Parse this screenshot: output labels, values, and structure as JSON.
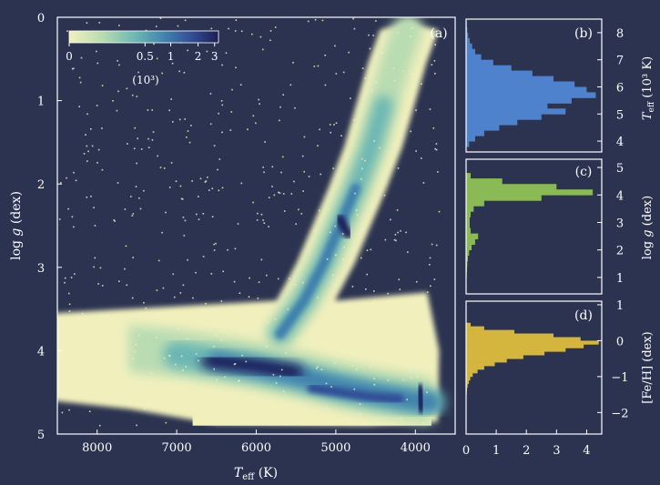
{
  "chart_data": [
    {
      "panel": "(a)",
      "type": "heatmap",
      "title": "",
      "xlabel_main": "T",
      "xlabel_sub": "eff",
      "xlabel_unit": " (K)",
      "ylabel_main": "log ",
      "ylabel_italic": "g",
      "ylabel_unit": " (dex)",
      "xlim": [
        8500,
        3500
      ],
      "ylim": [
        0,
        5
      ],
      "xticks": [
        8000,
        7000,
        6000,
        5000,
        4000
      ],
      "yticks": [
        0,
        1,
        2,
        3,
        4,
        5
      ],
      "colorbar": {
        "scale": "log",
        "ticks": [
          {
            "value": 0,
            "label": "0"
          },
          {
            "value": 0.5,
            "label": "0.5"
          },
          {
            "value": 1,
            "label": "1"
          },
          {
            "value": 2,
            "label": "2"
          },
          {
            "value": 3,
            "label": "3"
          }
        ],
        "unit": "(10³)",
        "colors": [
          "#f1f0bd",
          "#b9dcb2",
          "#6ab6b4",
          "#3f7fae",
          "#334d96",
          "#1e1e55"
        ]
      },
      "features": [
        {
          "name": "main sequence",
          "points": [
            [
              7600,
              4.0
            ],
            [
              7000,
              4.05
            ],
            [
              6500,
              4.12
            ],
            [
              6000,
              4.2
            ],
            [
              5500,
              4.3
            ],
            [
              5000,
              4.42
            ],
            [
              4500,
              4.52
            ],
            [
              4000,
              4.6
            ],
            [
              3800,
              4.62
            ]
          ]
        },
        {
          "name": "giant branch",
          "points": [
            [
              5700,
              3.8
            ],
            [
              5400,
              3.4
            ],
            [
              5150,
              2.95
            ],
            [
              4950,
              2.5
            ],
            [
              4750,
              2.05
            ],
            [
              4550,
              1.55
            ],
            [
              4400,
              1.05
            ],
            [
              4250,
              0.55
            ],
            [
              4100,
              0.15
            ]
          ]
        },
        {
          "name": "red clump",
          "points": [
            [
              4950,
              2.42
            ],
            [
              4850,
              2.6
            ]
          ]
        }
      ]
    },
    {
      "panel": "(b)",
      "type": "histogram",
      "orientation": "horizontal",
      "color": "#4f82cc",
      "ylabel_main": "T",
      "ylabel_sub": "eff",
      "ylabel_unit": " (10³ K)",
      "ylim": [
        3.6,
        8.5
      ],
      "yticks": [
        4,
        5,
        6,
        7,
        8
      ],
      "bins": [
        {
          "y": 8.3,
          "count": 0.02
        },
        {
          "y": 8.1,
          "count": 0.04
        },
        {
          "y": 7.9,
          "count": 0.07
        },
        {
          "y": 7.7,
          "count": 0.12
        },
        {
          "y": 7.5,
          "count": 0.2
        },
        {
          "y": 7.3,
          "count": 0.3
        },
        {
          "y": 7.1,
          "count": 0.5
        },
        {
          "y": 6.9,
          "count": 0.9
        },
        {
          "y": 6.7,
          "count": 1.5
        },
        {
          "y": 6.5,
          "count": 2.2
        },
        {
          "y": 6.3,
          "count": 2.9
        },
        {
          "y": 6.1,
          "count": 3.6
        },
        {
          "y": 5.9,
          "count": 4.0
        },
        {
          "y": 5.7,
          "count": 4.3
        },
        {
          "y": 5.5,
          "count": 3.5
        },
        {
          "y": 5.3,
          "count": 2.7
        },
        {
          "y": 5.1,
          "count": 3.3
        },
        {
          "y": 4.9,
          "count": 2.5
        },
        {
          "y": 4.7,
          "count": 1.7
        },
        {
          "y": 4.5,
          "count": 1.1
        },
        {
          "y": 4.3,
          "count": 0.6
        },
        {
          "y": 4.1,
          "count": 0.3
        },
        {
          "y": 3.9,
          "count": 0.1
        }
      ]
    },
    {
      "panel": "(c)",
      "type": "histogram",
      "orientation": "horizontal",
      "color": "#8aba55",
      "ylabel_main": "log ",
      "ylabel_italic": "g",
      "ylabel_unit": " (dex)",
      "ylim": [
        0.4,
        5.3
      ],
      "yticks": [
        1,
        2,
        3,
        4,
        5
      ],
      "bins": [
        {
          "y": 4.7,
          "count": 0.15
        },
        {
          "y": 4.5,
          "count": 1.2
        },
        {
          "y": 4.3,
          "count": 3.0
        },
        {
          "y": 4.1,
          "count": 4.2
        },
        {
          "y": 3.9,
          "count": 2.5
        },
        {
          "y": 3.7,
          "count": 0.6
        },
        {
          "y": 3.5,
          "count": 0.25
        },
        {
          "y": 3.3,
          "count": 0.15
        },
        {
          "y": 3.1,
          "count": 0.12
        },
        {
          "y": 2.9,
          "count": 0.12
        },
        {
          "y": 2.7,
          "count": 0.15
        },
        {
          "y": 2.5,
          "count": 0.4
        },
        {
          "y": 2.3,
          "count": 0.3
        },
        {
          "y": 2.1,
          "count": 0.18
        },
        {
          "y": 1.9,
          "count": 0.1
        },
        {
          "y": 1.7,
          "count": 0.06
        },
        {
          "y": 1.5,
          "count": 0.04
        },
        {
          "y": 1.3,
          "count": 0.03
        },
        {
          "y": 1.1,
          "count": 0.02
        },
        {
          "y": 0.9,
          "count": 0.01
        }
      ]
    },
    {
      "panel": "(d)",
      "type": "histogram",
      "orientation": "horizontal",
      "color": "#d4b53e",
      "ylabel_main": "[Fe/H] (dex)",
      "ylim": [
        -2.6,
        1.1
      ],
      "yticks": [
        1,
        0,
        -1,
        -2
      ],
      "ytick_labels": [
        "1",
        "0",
        "−1",
        "−2"
      ],
      "xlim": [
        0,
        4.5
      ],
      "xticks": [
        0,
        1,
        2,
        3,
        4
      ],
      "bins": [
        {
          "y": 0.45,
          "count": 0.15
        },
        {
          "y": 0.35,
          "count": 0.6
        },
        {
          "y": 0.25,
          "count": 1.6
        },
        {
          "y": 0.15,
          "count": 2.9
        },
        {
          "y": 0.05,
          "count": 3.8
        },
        {
          "y": -0.05,
          "count": 4.4
        },
        {
          "y": -0.15,
          "count": 3.9
        },
        {
          "y": -0.25,
          "count": 3.3
        },
        {
          "y": -0.35,
          "count": 2.6
        },
        {
          "y": -0.45,
          "count": 1.9
        },
        {
          "y": -0.55,
          "count": 1.35
        },
        {
          "y": -0.65,
          "count": 0.95
        },
        {
          "y": -0.75,
          "count": 0.6
        },
        {
          "y": -0.85,
          "count": 0.38
        },
        {
          "y": -0.95,
          "count": 0.22
        },
        {
          "y": -1.05,
          "count": 0.14
        },
        {
          "y": -1.15,
          "count": 0.09
        },
        {
          "y": -1.25,
          "count": 0.05
        },
        {
          "y": -1.35,
          "count": 0.03
        },
        {
          "y": -1.45,
          "count": 0.02
        },
        {
          "y": -1.55,
          "count": 0.01
        }
      ]
    }
  ]
}
